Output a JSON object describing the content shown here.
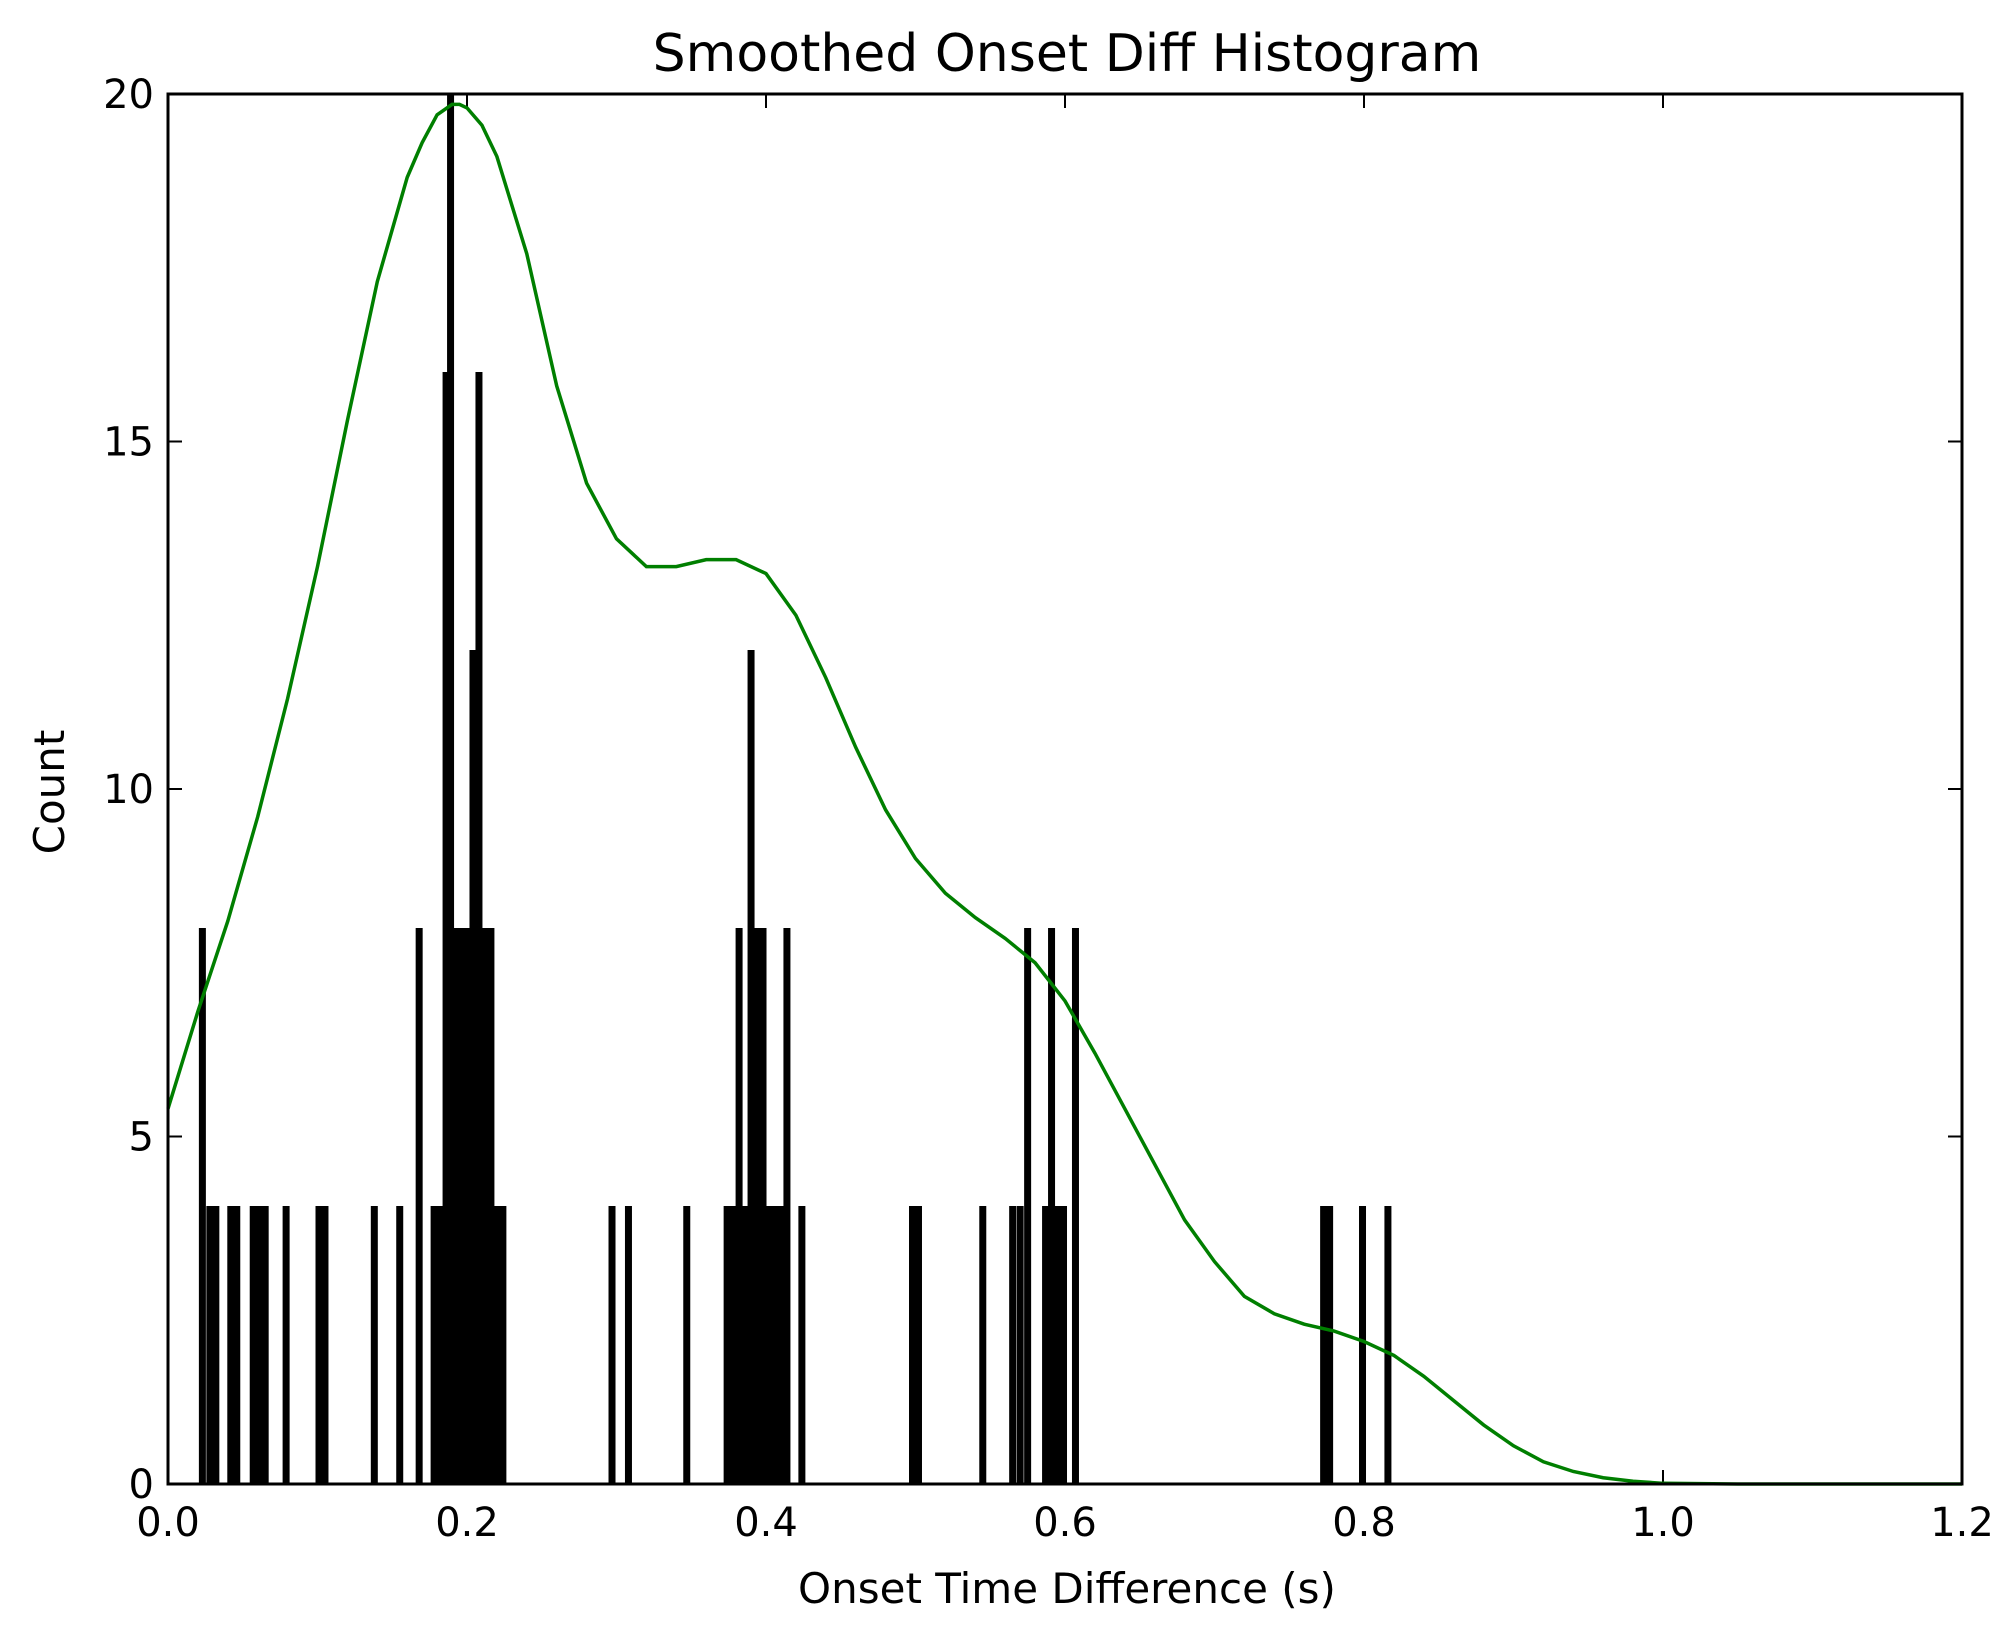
{
  "chart_data": {
    "type": "bar",
    "title": "Smoothed Onset Diff Histogram",
    "xlabel": "Onset Time Difference (s)",
    "ylabel": "Count",
    "xlim": [
      0.0,
      1.2
    ],
    "ylim": [
      0,
      20
    ],
    "xticks": [
      "0.0",
      "0.2",
      "0.4",
      "0.6",
      "0.8",
      "1.0",
      "1.2"
    ],
    "yticks": [
      "0",
      "5",
      "10",
      "15",
      "20"
    ],
    "grid": false,
    "colors": {
      "bars": "#000000",
      "smooth_line": "#007f00",
      "axes": "#000000"
    },
    "bars": [
      {
        "x": 0.023,
        "y": 8
      },
      {
        "x": 0.028,
        "y": 4
      },
      {
        "x": 0.032,
        "y": 4
      },
      {
        "x": 0.042,
        "y": 4
      },
      {
        "x": 0.046,
        "y": 4
      },
      {
        "x": 0.057,
        "y": 4
      },
      {
        "x": 0.061,
        "y": 4
      },
      {
        "x": 0.065,
        "y": 4
      },
      {
        "x": 0.079,
        "y": 4
      },
      {
        "x": 0.101,
        "y": 4
      },
      {
        "x": 0.105,
        "y": 4
      },
      {
        "x": 0.138,
        "y": 4
      },
      {
        "x": 0.155,
        "y": 4
      },
      {
        "x": 0.168,
        "y": 8
      },
      {
        "x": 0.178,
        "y": 4
      },
      {
        "x": 0.182,
        "y": 4
      },
      {
        "x": 0.186,
        "y": 16
      },
      {
        "x": 0.189,
        "y": 20
      },
      {
        "x": 0.192,
        "y": 8
      },
      {
        "x": 0.196,
        "y": 8
      },
      {
        "x": 0.2,
        "y": 8
      },
      {
        "x": 0.204,
        "y": 12
      },
      {
        "x": 0.208,
        "y": 16
      },
      {
        "x": 0.212,
        "y": 8
      },
      {
        "x": 0.216,
        "y": 8
      },
      {
        "x": 0.22,
        "y": 4
      },
      {
        "x": 0.224,
        "y": 4
      },
      {
        "x": 0.297,
        "y": 4
      },
      {
        "x": 0.308,
        "y": 4
      },
      {
        "x": 0.347,
        "y": 4
      },
      {
        "x": 0.374,
        "y": 4
      },
      {
        "x": 0.378,
        "y": 4
      },
      {
        "x": 0.382,
        "y": 8
      },
      {
        "x": 0.386,
        "y": 4
      },
      {
        "x": 0.39,
        "y": 12
      },
      {
        "x": 0.394,
        "y": 8
      },
      {
        "x": 0.398,
        "y": 8
      },
      {
        "x": 0.402,
        "y": 4
      },
      {
        "x": 0.406,
        "y": 4
      },
      {
        "x": 0.41,
        "y": 4
      },
      {
        "x": 0.414,
        "y": 8
      },
      {
        "x": 0.424,
        "y": 4
      },
      {
        "x": 0.498,
        "y": 4
      },
      {
        "x": 0.502,
        "y": 4
      },
      {
        "x": 0.545,
        "y": 4
      },
      {
        "x": 0.565,
        "y": 4
      },
      {
        "x": 0.57,
        "y": 4
      },
      {
        "x": 0.575,
        "y": 8
      },
      {
        "x": 0.587,
        "y": 4
      },
      {
        "x": 0.591,
        "y": 8
      },
      {
        "x": 0.595,
        "y": 4
      },
      {
        "x": 0.599,
        "y": 4
      },
      {
        "x": 0.607,
        "y": 8
      },
      {
        "x": 0.773,
        "y": 4
      },
      {
        "x": 0.777,
        "y": 4
      },
      {
        "x": 0.799,
        "y": 4
      },
      {
        "x": 0.816,
        "y": 4
      }
    ],
    "smooth_curve": {
      "x": [
        0.0,
        0.02,
        0.04,
        0.06,
        0.08,
        0.1,
        0.12,
        0.14,
        0.16,
        0.17,
        0.18,
        0.19,
        0.195,
        0.2,
        0.21,
        0.22,
        0.24,
        0.26,
        0.28,
        0.3,
        0.32,
        0.34,
        0.36,
        0.38,
        0.4,
        0.42,
        0.44,
        0.46,
        0.48,
        0.5,
        0.52,
        0.54,
        0.56,
        0.58,
        0.6,
        0.62,
        0.64,
        0.66,
        0.68,
        0.7,
        0.72,
        0.74,
        0.76,
        0.78,
        0.8,
        0.82,
        0.84,
        0.86,
        0.88,
        0.9,
        0.92,
        0.94,
        0.96,
        0.98,
        1.0,
        1.05,
        1.1,
        1.2
      ],
      "y": [
        5.4,
        6.8,
        8.1,
        9.6,
        11.3,
        13.2,
        15.3,
        17.3,
        18.8,
        19.3,
        19.7,
        19.85,
        19.85,
        19.8,
        19.55,
        19.1,
        17.7,
        15.8,
        14.4,
        13.6,
        13.2,
        13.2,
        13.3,
        13.3,
        13.1,
        12.5,
        11.6,
        10.6,
        9.7,
        9.0,
        8.5,
        8.15,
        7.85,
        7.5,
        6.95,
        6.2,
        5.4,
        4.6,
        3.8,
        3.2,
        2.7,
        2.45,
        2.3,
        2.2,
        2.05,
        1.85,
        1.55,
        1.2,
        0.85,
        0.55,
        0.32,
        0.18,
        0.09,
        0.04,
        0.01,
        0.0,
        0.0,
        0.0
      ]
    }
  }
}
